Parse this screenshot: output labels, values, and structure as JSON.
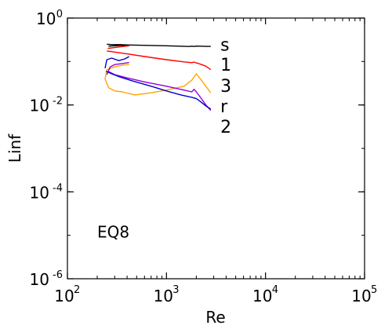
{
  "chart_data": {
    "type": "line",
    "xlabel": "Re",
    "ylabel": "Linf",
    "x_scale": "log",
    "y_scale": "log",
    "xlim": [
      100,
      100000
    ],
    "ylim": [
      1e-06,
      1
    ],
    "grid": false,
    "x_ticks": [
      {
        "base": "10",
        "exp": "2",
        "value": 100
      },
      {
        "base": "10",
        "exp": "3",
        "value": 1000
      },
      {
        "base": "10",
        "exp": "4",
        "value": 10000
      },
      {
        "base": "10",
        "exp": "5",
        "value": 100000
      }
    ],
    "y_ticks": [
      {
        "base": "10",
        "exp": "-6",
        "value": 1e-06
      },
      {
        "base": "10",
        "exp": "-4",
        "value": 0.0001
      },
      {
        "base": "10",
        "exp": "-2",
        "value": 0.01
      },
      {
        "base": "10",
        "exp": "0",
        "value": 1
      }
    ],
    "annotation": {
      "text": "EQ8",
      "x": 200,
      "y": 8.8e-06
    },
    "series": [
      {
        "name": "s",
        "color": "#000000",
        "label_at": {
          "x": 3500,
          "y": 0.25
        },
        "x": [
          250,
          280,
          340,
          420,
          1000,
          1700,
          1800,
          1900,
          2000,
          2200,
          2500,
          2800
        ],
        "y": [
          0.25,
          0.245,
          0.245,
          0.24,
          0.23,
          0.222,
          0.225,
          0.222,
          0.226,
          0.225,
          0.223,
          0.223
        ]
      },
      {
        "name": "s",
        "color": "#000000",
        "x": [
          260,
          300,
          350,
          420
        ],
        "y": [
          0.225,
          0.23,
          0.235,
          0.235
        ]
      },
      {
        "name": "1",
        "color": "#ff0000",
        "label_at": {
          "x": 3500,
          "y": 0.085
        },
        "x": [
          250,
          300,
          400,
          600,
          1000,
          1500,
          1800,
          1900,
          2000,
          2200,
          2500,
          2800
        ],
        "y": [
          0.175,
          0.165,
          0.15,
          0.13,
          0.11,
          0.098,
          0.094,
          0.097,
          0.093,
          0.087,
          0.078,
          0.065
        ]
      },
      {
        "name": "1",
        "color": "#ff0000",
        "x": [
          255,
          300,
          350,
          420
        ],
        "y": [
          0.2,
          0.21,
          0.22,
          0.23
        ]
      },
      {
        "name": "3",
        "color": "#ffa500",
        "label_at": {
          "x": 3500,
          "y": 0.028
        },
        "x": [
          250,
          240,
          260,
          300,
          360,
          480,
          700,
          1000,
          1500,
          1800,
          2000,
          2300,
          2800
        ],
        "y": [
          0.065,
          0.04,
          0.025,
          0.021,
          0.02,
          0.017,
          0.019,
          0.022,
          0.027,
          0.037,
          0.052,
          0.035,
          0.019
        ]
      },
      {
        "name": "3",
        "color": "#ffa500",
        "x": [
          250,
          300,
          360,
          420
        ],
        "y": [
          0.065,
          0.075,
          0.082,
          0.085
        ]
      },
      {
        "name": "r",
        "color": "#9400d3",
        "label_at": {
          "x": 3500,
          "y": 0.0095
        },
        "x": [
          255,
          300,
          400,
          600,
          1000,
          1500,
          1800,
          1900,
          2000,
          2200,
          2500,
          2800
        ],
        "y": [
          0.06,
          0.05,
          0.042,
          0.034,
          0.027,
          0.022,
          0.02,
          0.023,
          0.02,
          0.015,
          0.01,
          0.0075
        ]
      },
      {
        "name": "r",
        "color": "#9400d3",
        "x": [
          250,
          270,
          300,
          360,
          420
        ],
        "y": [
          0.05,
          0.075,
          0.085,
          0.09,
          0.095
        ]
      },
      {
        "name": "2",
        "color": "#0000cd",
        "label_at": {
          "x": 3500,
          "y": 0.0032
        },
        "x": [
          245,
          280,
          340,
          450,
          700,
          1000,
          1400,
          1800,
          2000,
          2200,
          2500,
          2800
        ],
        "y": [
          0.06,
          0.052,
          0.044,
          0.036,
          0.027,
          0.021,
          0.017,
          0.015,
          0.014,
          0.012,
          0.0095,
          0.008
        ]
      },
      {
        "name": "2",
        "color": "#0000cd",
        "x": [
          240,
          250,
          280,
          330,
          380,
          420
        ],
        "y": [
          0.07,
          0.11,
          0.12,
          0.105,
          0.115,
          0.13
        ]
      }
    ]
  }
}
